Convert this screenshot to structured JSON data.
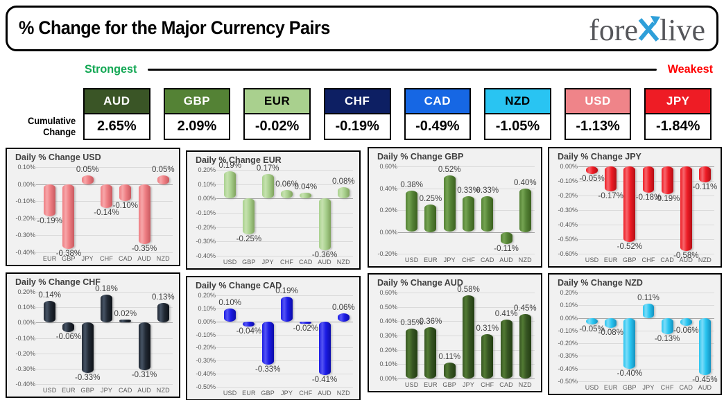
{
  "header": {
    "title": "% Change for the Major Currency Pairs",
    "logo": {
      "part1": "fore",
      "x": "X",
      "part2": "live"
    }
  },
  "scale": {
    "strongest": "Strongest",
    "weakest": "Weakest",
    "strongest_color": "#12A753",
    "weakest_color": "#FF0000"
  },
  "cumulative": {
    "label_line1": "Cumulative",
    "label_line2": "Change",
    "items": [
      {
        "code": "AUD",
        "value": "2.65%",
        "bg": "#3A5526",
        "fg": "#FFFFFF"
      },
      {
        "code": "GBP",
        "value": "2.09%",
        "bg": "#548235",
        "fg": "#FFFFFF"
      },
      {
        "code": "EUR",
        "value": "-0.02%",
        "bg": "#A9D08E",
        "fg": "#000000"
      },
      {
        "code": "CHF",
        "value": "-0.19%",
        "bg": "#0D1F63",
        "fg": "#FFFFFF"
      },
      {
        "code": "CAD",
        "value": "-0.49%",
        "bg": "#1667E4",
        "fg": "#FFFFFF"
      },
      {
        "code": "NZD",
        "value": "-1.05%",
        "bg": "#29C4F2",
        "fg": "#000000"
      },
      {
        "code": "USD",
        "value": "-1.13%",
        "bg": "#EF8489",
        "fg": "#FFFFFF"
      },
      {
        "code": "JPY",
        "value": "-1.84%",
        "bg": "#EE1C25",
        "fg": "#FFFFFF"
      }
    ]
  },
  "chart_data": [
    {
      "type": "bar",
      "title": "Daily % Change USD",
      "color": "#EE7D82",
      "color_light": "#F7A6A9",
      "color_dark": "#C85A60",
      "categories": [
        "EUR",
        "GBP",
        "JPY",
        "CHF",
        "CAD",
        "AUD",
        "NZD"
      ],
      "values": [
        -0.19,
        -0.38,
        0.05,
        -0.14,
        -0.1,
        -0.35,
        0.05
      ],
      "labels": [
        "-0.19%",
        "-0.38%",
        "0.05%",
        "-0.14%",
        "-0.10%",
        "-0.35%",
        "0.05%"
      ],
      "ymax": 0.1,
      "ymin": -0.4,
      "yticks": [
        0.1,
        0.0,
        -0.1,
        -0.2,
        -0.3,
        -0.4
      ],
      "ytick_labels": [
        "0.10%",
        "0.00%",
        "-0.10%",
        "-0.20%",
        "-0.30%",
        "-0.40%"
      ]
    },
    {
      "type": "bar",
      "title": "Daily % Change EUR",
      "color": "#A9D08E",
      "color_light": "#C6E2AF",
      "color_dark": "#7FA35D",
      "categories": [
        "USD",
        "GBP",
        "JPY",
        "CHF",
        "CAD",
        "AUD",
        "NZD"
      ],
      "values": [
        0.19,
        -0.25,
        0.17,
        0.06,
        0.04,
        -0.36,
        0.08
      ],
      "labels": [
        "0.19%",
        "-0.25%",
        "0.17%",
        "0.06%",
        "0.04%",
        "-0.36%",
        "0.08%"
      ],
      "ymax": 0.2,
      "ymin": -0.4,
      "yticks": [
        0.2,
        0.1,
        0.0,
        -0.1,
        -0.2,
        -0.3,
        -0.4
      ],
      "ytick_labels": [
        "0.20%",
        "0.10%",
        "0.00%",
        "-0.10%",
        "-0.20%",
        "-0.30%",
        "-0.40%"
      ]
    },
    {
      "type": "bar",
      "title": "Daily % Change GBP",
      "color": "#548235",
      "color_light": "#74A352",
      "color_dark": "#3C611F",
      "categories": [
        "USD",
        "EUR",
        "JPY",
        "CHF",
        "CAD",
        "AUD",
        "NZD"
      ],
      "values": [
        0.38,
        0.25,
        0.52,
        0.33,
        0.33,
        -0.11,
        0.4
      ],
      "labels": [
        "0.38%",
        "0.25%",
        "0.52%",
        "0.33%",
        "0.33%",
        "-0.11%",
        "0.40%"
      ],
      "ymax": 0.6,
      "ymin": -0.2,
      "yticks": [
        0.6,
        0.4,
        0.2,
        0.0,
        -0.2
      ],
      "ytick_labels": [
        "0.60%",
        "0.40%",
        "0.20%",
        "0.00%",
        "-0.20%"
      ]
    },
    {
      "type": "bar",
      "title": "Daily % Change JPY",
      "color": "#EE1C25",
      "color_light": "#F7666C",
      "color_dark": "#B30F16",
      "categories": [
        "USD",
        "EUR",
        "GBP",
        "CHF",
        "CAD",
        "AUD",
        "NZD"
      ],
      "values": [
        -0.05,
        -0.17,
        -0.52,
        -0.18,
        -0.19,
        -0.58,
        -0.11
      ],
      "labels": [
        "-0.05%",
        "-0.17%",
        "-0.52%",
        "-0.18%",
        "-0.19%",
        "-0.58%",
        "-0.11%"
      ],
      "ymax": 0.0,
      "ymin": -0.6,
      "yticks": [
        0.0,
        -0.1,
        -0.2,
        -0.3,
        -0.4,
        -0.5,
        -0.6
      ],
      "ytick_labels": [
        "0.00%",
        "-0.10%",
        "-0.20%",
        "-0.30%",
        "-0.40%",
        "-0.50%",
        "-0.60%"
      ]
    },
    {
      "type": "bar",
      "title": "Daily % Change CHF",
      "color": "#222A35",
      "color_light": "#465364",
      "color_dark": "#0E1218",
      "categories": [
        "USD",
        "EUR",
        "GBP",
        "JPY",
        "CAD",
        "AUD",
        "NZD"
      ],
      "values": [
        0.14,
        -0.06,
        -0.33,
        0.18,
        0.02,
        -0.31,
        0.13
      ],
      "labels": [
        "0.14%",
        "-0.06%",
        "-0.33%",
        "0.18%",
        "0.02%",
        "-0.31%",
        "0.13%"
      ],
      "ymax": 0.2,
      "ymin": -0.4,
      "yticks": [
        0.2,
        0.1,
        0.0,
        -0.1,
        -0.2,
        -0.3,
        -0.4
      ],
      "ytick_labels": [
        "0.20%",
        "0.10%",
        "0.00%",
        "-0.10%",
        "-0.20%",
        "-0.30%",
        "-0.40%"
      ]
    },
    {
      "type": "bar",
      "title": "Daily % Change CAD",
      "color": "#1B1BE4",
      "color_light": "#5555F5",
      "color_dark": "#0D0DAA",
      "categories": [
        "USD",
        "EUR",
        "GBP",
        "JPY",
        "CHF",
        "AUD",
        "NZD"
      ],
      "values": [
        0.1,
        -0.04,
        -0.33,
        0.19,
        -0.02,
        -0.41,
        0.06
      ],
      "labels": [
        "0.10%",
        "-0.04%",
        "-0.33%",
        "0.19%",
        "-0.02%",
        "-0.41%",
        "0.06%"
      ],
      "ymax": 0.2,
      "ymin": -0.5,
      "yticks": [
        0.2,
        0.1,
        0.0,
        -0.1,
        -0.2,
        -0.3,
        -0.4,
        -0.5
      ],
      "ytick_labels": [
        "0.20%",
        "0.10%",
        "0.00%",
        "-0.10%",
        "-0.20%",
        "-0.30%",
        "-0.40%",
        "-0.50%"
      ]
    },
    {
      "type": "bar",
      "title": "Daily % Change AUD",
      "color": "#375623",
      "color_light": "#527A33",
      "color_dark": "#233E12",
      "categories": [
        "USD",
        "EUR",
        "GBP",
        "JPY",
        "CHF",
        "CAD",
        "NZD"
      ],
      "values": [
        0.35,
        0.36,
        0.11,
        0.58,
        0.31,
        0.41,
        0.45
      ],
      "labels": [
        "0.35%",
        "0.36%",
        "0.11%",
        "0.58%",
        "0.31%",
        "0.41%",
        "0.45%"
      ],
      "ymax": 0.6,
      "ymin": 0.0,
      "yticks": [
        0.6,
        0.5,
        0.4,
        0.3,
        0.2,
        0.1,
        0.0
      ],
      "ytick_labels": [
        "0.60%",
        "0.50%",
        "0.40%",
        "0.30%",
        "0.20%",
        "0.10%",
        "0.00%"
      ]
    },
    {
      "type": "bar",
      "title": "Daily % Change NZD",
      "color": "#29C5F0",
      "color_light": "#7BDCF8",
      "color_dark": "#1691BF",
      "categories": [
        "USD",
        "EUR",
        "GBP",
        "JPY",
        "CHF",
        "CAD",
        "AUD"
      ],
      "values": [
        -0.05,
        -0.08,
        -0.4,
        0.11,
        -0.13,
        -0.06,
        -0.45
      ],
      "labels": [
        "-0.05%",
        "-0.08%",
        "-0.40%",
        "0.11%",
        "-0.13%",
        "-0.06%",
        "-0.45%"
      ],
      "ymax": 0.2,
      "ymin": -0.5,
      "yticks": [
        0.2,
        0.1,
        0.0,
        -0.1,
        -0.2,
        -0.3,
        -0.4,
        -0.5
      ],
      "ytick_labels": [
        "0.20%",
        "0.10%",
        "0.00%",
        "-0.10%",
        "-0.20%",
        "-0.30%",
        "-0.40%",
        "-0.50%"
      ]
    }
  ]
}
